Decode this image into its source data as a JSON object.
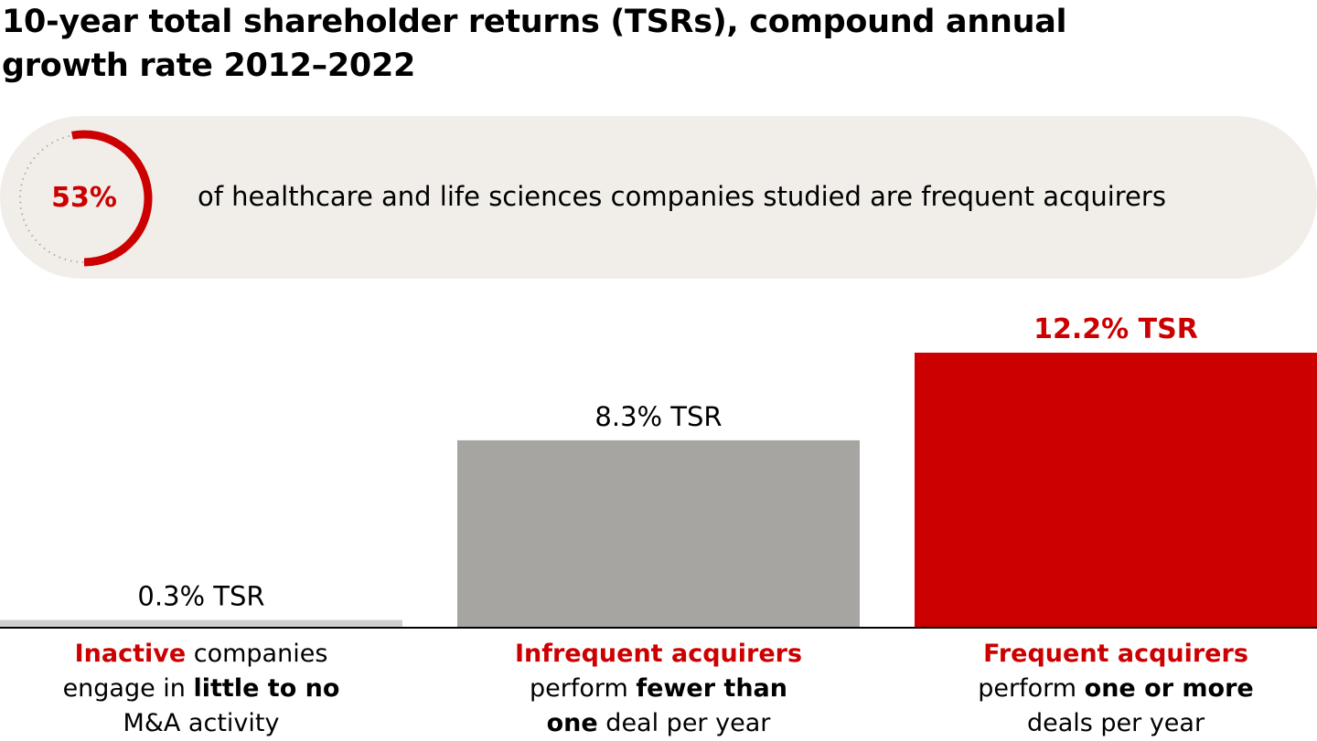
{
  "title": "10-year total shareholder returns (TSRs), compound annual growth rate 2012–2022",
  "callout": {
    "value": "53%",
    "fraction": 0.53,
    "text": "of healthcare and life sciences companies studied are frequent acquirers"
  },
  "colors": {
    "accent": "#cc0000",
    "gray_bar": "#a6a5a2",
    "light_bar": "#cfcfcf",
    "callout_bg": "#f1eeea"
  },
  "chart_data": {
    "type": "bar",
    "title": "10-year total shareholder returns (TSRs), compound annual growth rate 2012–2022",
    "categories": [
      "Inactive",
      "Infrequent acquirers",
      "Frequent acquirers"
    ],
    "values": [
      0.3,
      8.3,
      12.2
    ],
    "unit": "%",
    "data_labels": [
      "0.3% TSR",
      "8.3% TSR",
      "12.2% TSR"
    ],
    "xlabel": "",
    "ylabel": "",
    "grid": false,
    "legend": "none"
  },
  "categories": [
    {
      "highlight": "Inactive",
      "line1_rest": " companies",
      "line2_pre": "engage in ",
      "line2_bold": "little to no",
      "line2_post": "",
      "line3_bold": "",
      "line3_post": "M&A activity"
    },
    {
      "highlight": "Infrequent acquirers",
      "line1_rest": "",
      "line2_pre": "perform ",
      "line2_bold": "fewer than",
      "line2_post": "",
      "line3_bold": "one",
      "line3_post": " deal per year"
    },
    {
      "highlight": "Frequent acquirers",
      "line1_rest": "",
      "line2_pre": "perform ",
      "line2_bold": "one or more",
      "line2_post": "",
      "line3_bold": "",
      "line3_post": "deals per year"
    }
  ]
}
